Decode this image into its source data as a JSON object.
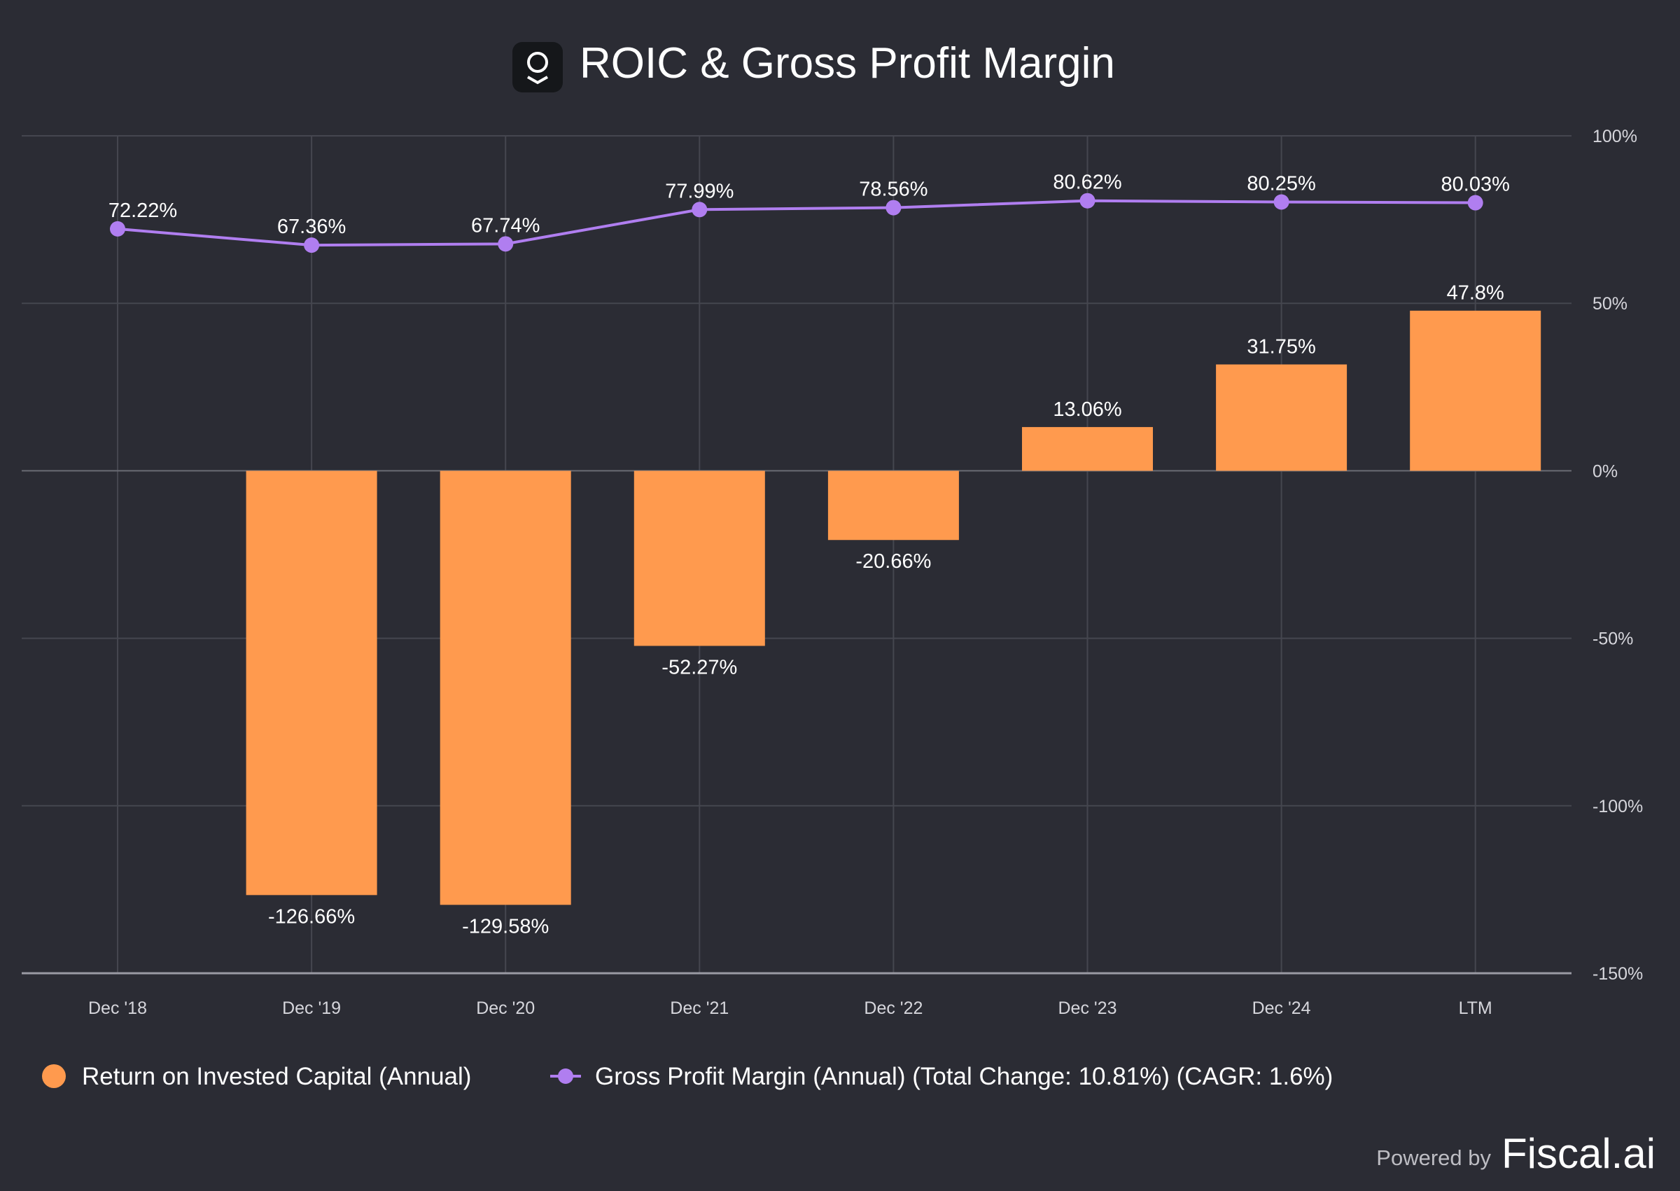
{
  "chart_data": {
    "type": "bar",
    "title": "ROIC & Gross Profit Margin",
    "categories": [
      "Dec '18",
      "Dec '19",
      "Dec '20",
      "Dec '21",
      "Dec '22",
      "Dec '23",
      "Dec '24",
      "LTM"
    ],
    "series": [
      {
        "name": "Return on Invested Capital (Annual)",
        "type": "bar",
        "color": "#ff9a4e",
        "values": [
          null,
          -126.66,
          -129.58,
          -52.27,
          -20.66,
          13.06,
          31.75,
          47.8
        ],
        "labels": [
          "",
          "-126.66%",
          "-129.58%",
          "-52.27%",
          "-20.66%",
          "13.06%",
          "31.75%",
          "47.8%"
        ]
      },
      {
        "name": "Gross Profit Margin (Annual) (Total Change: 10.81%) (CAGR: 1.6%)",
        "type": "line",
        "color": "#b07ef0",
        "values": [
          72.22,
          67.36,
          67.74,
          77.99,
          78.56,
          80.62,
          80.25,
          80.03
        ],
        "labels": [
          "72.22%",
          "67.36%",
          "67.74%",
          "77.99%",
          "78.56%",
          "80.62%",
          "80.25%",
          "80.03%"
        ]
      }
    ],
    "ylim": [
      -150,
      100
    ],
    "yticks": [
      100,
      50,
      0,
      -50,
      -100,
      -150
    ],
    "ytick_labels": [
      "100%",
      "50%",
      "0%",
      "-50%",
      "-100%",
      "-150%"
    ],
    "y_axis_side": "right",
    "grid": true,
    "legend_placement": "bottom-left"
  },
  "logo_icon": "fiscal-ai-logo-icon",
  "footer": {
    "powered_by": "Powered by",
    "brand": "Fiscal.ai"
  }
}
